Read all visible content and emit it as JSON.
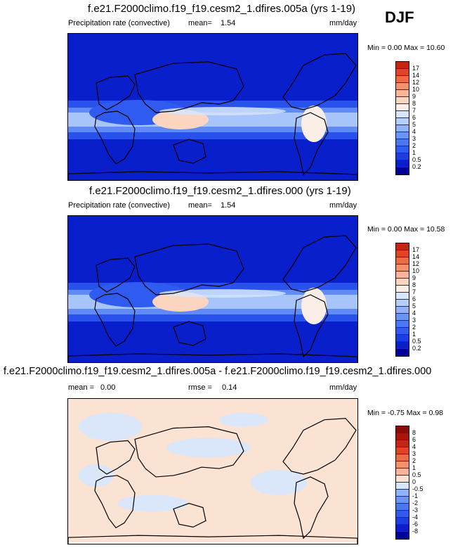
{
  "season": "DJF",
  "panels": [
    {
      "title": "f.e21.F2000climo.f19_f19.cesm2_1.dfires.005a (yrs 1-19)",
      "variable": "Precipitation rate (convective)",
      "stat_label": "mean=",
      "stat_value": "1.54",
      "units": "mm/day",
      "min_label": "Min =",
      "min_value": "0.00",
      "max_label": "Max =",
      "max_value": "10.60"
    },
    {
      "title": "f.e21.F2000climo.f19_f19.cesm2_1.dfires.000 (yrs 1-19)",
      "variable": "Precipitation rate (convective)",
      "stat_label": "mean=",
      "stat_value": "1.54",
      "units": "mm/day",
      "min_label": "Min =",
      "min_value": "0.00",
      "max_label": "Max =",
      "max_value": "10.58"
    },
    {
      "title": "f.e21.F2000climo.f19_f19.cesm2_1.dfires.005a - f.e21.F2000climo.f19_f19.cesm2_1.dfires.000",
      "stat_label": "mean =",
      "stat_value": "0.00",
      "stat2_label": "rmse =",
      "stat2_value": "0.14",
      "units": "mm/day",
      "min_label": "Min =",
      "min_value": "-0.75",
      "max_label": "Max =",
      "max_value": "0.98"
    }
  ],
  "chart_data": [
    {
      "type": "heatmap",
      "title": "f.e21.F2000climo.f19_f19.cesm2_1.dfires.005a (yrs 1-19)",
      "variable": "Precipitation rate (convective)",
      "units": "mm/day",
      "mean": 1.54,
      "min": 0.0,
      "max": 10.6,
      "levels": [
        0.2,
        0.5,
        1,
        2,
        3,
        4,
        5,
        6,
        7,
        8,
        9,
        10,
        12,
        14,
        17
      ],
      "colorbar_labels": [
        "17",
        "14",
        "12",
        "10",
        "9",
        "8",
        "7",
        "6",
        "5",
        "4",
        "3",
        "2",
        "1",
        "0.5",
        "0.2"
      ],
      "colors": [
        "#000099",
        "#0a1fcc",
        "#1a3ee0",
        "#2f5bf0",
        "#4a78f5",
        "#6a95f8",
        "#8fb3fa",
        "#b4cffc",
        "#d6e6fd",
        "#fbeee6",
        "#fbd5c0",
        "#f8b597",
        "#f4906a",
        "#ee6a42",
        "#e04424",
        "#c42612"
      ]
    },
    {
      "type": "heatmap",
      "title": "f.e21.F2000climo.f19_f19.cesm2_1.dfires.000 (yrs 1-19)",
      "variable": "Precipitation rate (convective)",
      "units": "mm/day",
      "mean": 1.54,
      "min": 0.0,
      "max": 10.58,
      "levels": [
        0.2,
        0.5,
        1,
        2,
        3,
        4,
        5,
        6,
        7,
        8,
        9,
        10,
        12,
        14,
        17
      ],
      "colorbar_labels": [
        "17",
        "14",
        "12",
        "10",
        "9",
        "8",
        "7",
        "6",
        "5",
        "4",
        "3",
        "2",
        "1",
        "0.5",
        "0.2"
      ],
      "colors": [
        "#000099",
        "#0a1fcc",
        "#1a3ee0",
        "#2f5bf0",
        "#4a78f5",
        "#6a95f8",
        "#8fb3fa",
        "#b4cffc",
        "#d6e6fd",
        "#fbeee6",
        "#fbd5c0",
        "#f8b597",
        "#f4906a",
        "#ee6a42",
        "#e04424",
        "#c42612"
      ]
    },
    {
      "type": "heatmap",
      "title": "f.e21.F2000climo.f19_f19.cesm2_1.dfires.005a - f.e21.F2000climo.f19_f19.cesm2_1.dfires.000",
      "units": "mm/day",
      "mean": 0.0,
      "rmse": 0.14,
      "min": -0.75,
      "max": 0.98,
      "levels": [
        -8,
        -6,
        -4,
        -3,
        -2,
        -1,
        -0.5,
        0,
        0.5,
        1,
        2,
        3,
        4,
        6,
        8
      ],
      "colorbar_labels": [
        "8",
        "6",
        "4",
        "3",
        "2",
        "1",
        "0.5",
        "0",
        "-0.5",
        "-1",
        "-2",
        "-3",
        "-4",
        "-6",
        "-8"
      ],
      "colors": [
        "#000099",
        "#0a1fcc",
        "#1a3ee0",
        "#2f5bf0",
        "#4a78f5",
        "#6a95f8",
        "#8fb3fa",
        "#d6e6fd",
        "#fbe3d3",
        "#f8b597",
        "#f4906a",
        "#ee6a42",
        "#e04424",
        "#c42612",
        "#a8150a",
        "#8a0c05"
      ]
    }
  ]
}
